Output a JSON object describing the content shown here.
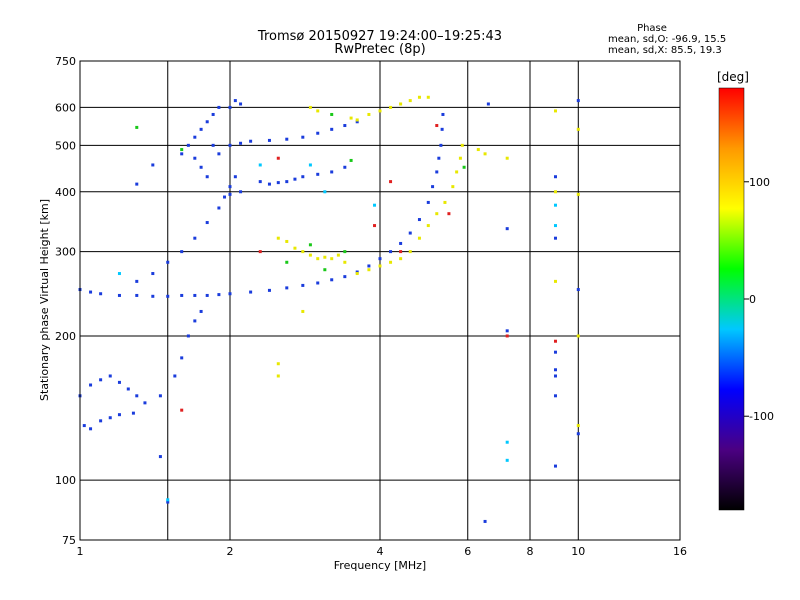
{
  "chart_data": {
    "type": "scatter",
    "title": "Tromsø 20150927 19:24:00–19:25:43",
    "subtitle": "RwPretec (8p)",
    "xlabel": "Frequency [MHz]",
    "ylabel": "Stationary phase Virtual Height [km]",
    "x_scale": "log",
    "y_scale": "log",
    "xlim": [
      1,
      16
    ],
    "ylim": [
      75,
      750
    ],
    "x_ticks": [
      1,
      2,
      4,
      6,
      8,
      10,
      16
    ],
    "x_tick_labels": [
      "1",
      "2",
      "4",
      "6",
      "8",
      "10",
      "16"
    ],
    "x_grid": [
      1.5,
      2,
      4,
      6,
      8,
      10
    ],
    "y_ticks": [
      75,
      100,
      200,
      300,
      400,
      500,
      600,
      750
    ],
    "y_tick_labels": [
      "75",
      "100",
      "200",
      "300",
      "400",
      "500",
      "600",
      "750"
    ],
    "y_grid": [
      100,
      200,
      300,
      400,
      500,
      600
    ],
    "grid": true,
    "phase_stats": {
      "heading": "Phase",
      "line_o": "mean, sd,O: -96.9, 15.5",
      "line_x": "mean, sd,X: 85.5, 19.3"
    },
    "colorbar": {
      "unit_label": "[deg]",
      "range": [
        -180,
        180
      ],
      "ticks": [
        100,
        0,
        -100
      ],
      "tick_labels": [
        "100",
        "0",
        "-100"
      ],
      "colormap": [
        "#000000",
        "#4b0082",
        "#0000ff",
        "#00c8ff",
        "#00ff00",
        "#ffff00",
        "#ff9900",
        "#ff0000"
      ]
    },
    "series": [
      {
        "mode": "O",
        "color": "#1a3cdc",
        "points": [
          [
            1.02,
            130
          ],
          [
            1.05,
            128
          ],
          [
            1.1,
            133
          ],
          [
            1.15,
            135
          ],
          [
            1.2,
            137
          ],
          [
            1.28,
            138
          ],
          [
            1.35,
            145
          ],
          [
            1.45,
            150
          ],
          [
            1.55,
            165
          ],
          [
            1.6,
            180
          ],
          [
            1.65,
            200
          ],
          [
            1.7,
            215
          ],
          [
            1.75,
            225
          ],
          [
            1.0,
            150
          ],
          [
            1.05,
            158
          ],
          [
            1.1,
            162
          ],
          [
            1.15,
            165
          ],
          [
            1.2,
            160
          ],
          [
            1.25,
            155
          ],
          [
            1.3,
            150
          ],
          [
            1.0,
            250
          ],
          [
            1.05,
            247
          ],
          [
            1.1,
            245
          ],
          [
            1.2,
            243
          ],
          [
            1.3,
            243
          ],
          [
            1.4,
            242
          ],
          [
            1.5,
            242
          ],
          [
            1.6,
            243
          ],
          [
            1.7,
            243
          ],
          [
            1.8,
            243
          ],
          [
            1.9,
            244
          ],
          [
            2.0,
            245
          ],
          [
            2.2,
            247
          ],
          [
            2.4,
            249
          ],
          [
            2.6,
            252
          ],
          [
            2.8,
            255
          ],
          [
            3.0,
            258
          ],
          [
            3.2,
            262
          ],
          [
            3.4,
            266
          ],
          [
            3.6,
            272
          ],
          [
            3.8,
            280
          ],
          [
            4.0,
            290
          ],
          [
            4.2,
            300
          ],
          [
            4.4,
            312
          ],
          [
            4.6,
            328
          ],
          [
            4.8,
            350
          ],
          [
            5.0,
            380
          ],
          [
            5.1,
            410
          ],
          [
            5.2,
            440
          ],
          [
            5.25,
            470
          ],
          [
            5.3,
            500
          ],
          [
            5.33,
            540
          ],
          [
            5.35,
            580
          ],
          [
            1.3,
            260
          ],
          [
            1.4,
            270
          ],
          [
            1.5,
            285
          ],
          [
            1.6,
            300
          ],
          [
            1.7,
            320
          ],
          [
            1.8,
            345
          ],
          [
            1.9,
            370
          ],
          [
            1.95,
            390
          ],
          [
            2.0,
            410
          ],
          [
            2.05,
            430
          ],
          [
            1.6,
            480
          ],
          [
            1.65,
            500
          ],
          [
            1.7,
            520
          ],
          [
            1.75,
            540
          ],
          [
            1.8,
            560
          ],
          [
            1.85,
            580
          ],
          [
            1.9,
            600
          ],
          [
            1.7,
            470
          ],
          [
            1.75,
            450
          ],
          [
            1.8,
            430
          ],
          [
            1.85,
            500
          ],
          [
            1.9,
            480
          ],
          [
            2.0,
            500
          ],
          [
            2.1,
            505
          ],
          [
            2.2,
            510
          ],
          [
            2.4,
            512
          ],
          [
            2.6,
            515
          ],
          [
            2.8,
            520
          ],
          [
            3.0,
            530
          ],
          [
            3.2,
            540
          ],
          [
            3.4,
            550
          ],
          [
            3.6,
            560
          ],
          [
            2.3,
            420
          ],
          [
            2.4,
            415
          ],
          [
            2.5,
            418
          ],
          [
            2.6,
            420
          ],
          [
            2.7,
            425
          ],
          [
            2.8,
            430
          ],
          [
            3.0,
            435
          ],
          [
            3.2,
            440
          ],
          [
            3.4,
            450
          ],
          [
            2.0,
            600
          ],
          [
            2.05,
            620
          ],
          [
            2.1,
            610
          ],
          [
            2.0,
            395
          ],
          [
            2.1,
            400
          ],
          [
            6.5,
            82
          ],
          [
            6.6,
            610
          ],
          [
            7.2,
            205
          ],
          [
            7.2,
            335
          ],
          [
            9.0,
            430
          ],
          [
            9.0,
            320
          ],
          [
            9.0,
            185
          ],
          [
            9.0,
            170
          ],
          [
            9.0,
            165
          ],
          [
            9.0,
            150
          ],
          [
            9.0,
            107
          ],
          [
            10.0,
            125
          ],
          [
            10.0,
            250
          ],
          [
            10.0,
            620
          ],
          [
            1.5,
            90
          ],
          [
            1.45,
            112
          ],
          [
            1.4,
            455
          ],
          [
            1.3,
            415
          ]
        ]
      },
      {
        "mode": "X",
        "color": "#e8e800",
        "points": [
          [
            2.5,
            320
          ],
          [
            2.6,
            315
          ],
          [
            2.7,
            305
          ],
          [
            2.8,
            300
          ],
          [
            2.9,
            295
          ],
          [
            3.0,
            290
          ],
          [
            3.1,
            292
          ],
          [
            3.2,
            290
          ],
          [
            3.3,
            295
          ],
          [
            3.4,
            285
          ],
          [
            3.6,
            270
          ],
          [
            3.8,
            275
          ],
          [
            4.0,
            280
          ],
          [
            4.2,
            285
          ],
          [
            4.4,
            290
          ],
          [
            4.6,
            300
          ],
          [
            4.8,
            320
          ],
          [
            5.0,
            340
          ],
          [
            5.2,
            360
          ],
          [
            5.4,
            380
          ],
          [
            5.6,
            410
          ],
          [
            5.7,
            440
          ],
          [
            5.8,
            470
          ],
          [
            5.85,
            500
          ],
          [
            3.5,
            570
          ],
          [
            3.6,
            565
          ],
          [
            3.8,
            580
          ],
          [
            4.0,
            590
          ],
          [
            4.2,
            600
          ],
          [
            4.4,
            610
          ],
          [
            4.6,
            620
          ],
          [
            4.8,
            630
          ],
          [
            5.0,
            630
          ],
          [
            3.0,
            590
          ],
          [
            2.9,
            600
          ],
          [
            2.5,
            175
          ],
          [
            2.5,
            165
          ],
          [
            2.8,
            225
          ],
          [
            6.3,
            490
          ],
          [
            6.5,
            480
          ],
          [
            7.2,
            470
          ],
          [
            9.0,
            590
          ],
          [
            9.0,
            400
          ],
          [
            9.0,
            260
          ],
          [
            10.0,
            540
          ],
          [
            10.0,
            395
          ],
          [
            10.0,
            200
          ],
          [
            10.0,
            130
          ]
        ]
      },
      {
        "mode": "other",
        "color": "#19c819",
        "points": [
          [
            1.3,
            545
          ],
          [
            2.6,
            285
          ],
          [
            2.9,
            310
          ],
          [
            3.4,
            300
          ],
          [
            3.2,
            580
          ],
          [
            3.5,
            465
          ],
          [
            5.9,
            450
          ],
          [
            3.1,
            275
          ],
          [
            1.6,
            490
          ]
        ]
      },
      {
        "mode": "other",
        "color": "#00c8ff",
        "points": [
          [
            1.2,
            270
          ],
          [
            1.5,
            91
          ],
          [
            2.3,
            455
          ],
          [
            2.9,
            455
          ],
          [
            3.1,
            400
          ],
          [
            7.2,
            120
          ],
          [
            7.2,
            110
          ],
          [
            9.0,
            375
          ],
          [
            9.0,
            340
          ],
          [
            3.9,
            375
          ]
        ]
      },
      {
        "mode": "other",
        "color": "#e02020",
        "points": [
          [
            1.6,
            140
          ],
          [
            2.5,
            470
          ],
          [
            3.9,
            340
          ],
          [
            4.2,
            420
          ],
          [
            4.4,
            300
          ],
          [
            5.2,
            550
          ],
          [
            5.5,
            360
          ],
          [
            7.2,
            200
          ],
          [
            9.0,
            195
          ],
          [
            2.3,
            300
          ]
        ]
      }
    ]
  }
}
